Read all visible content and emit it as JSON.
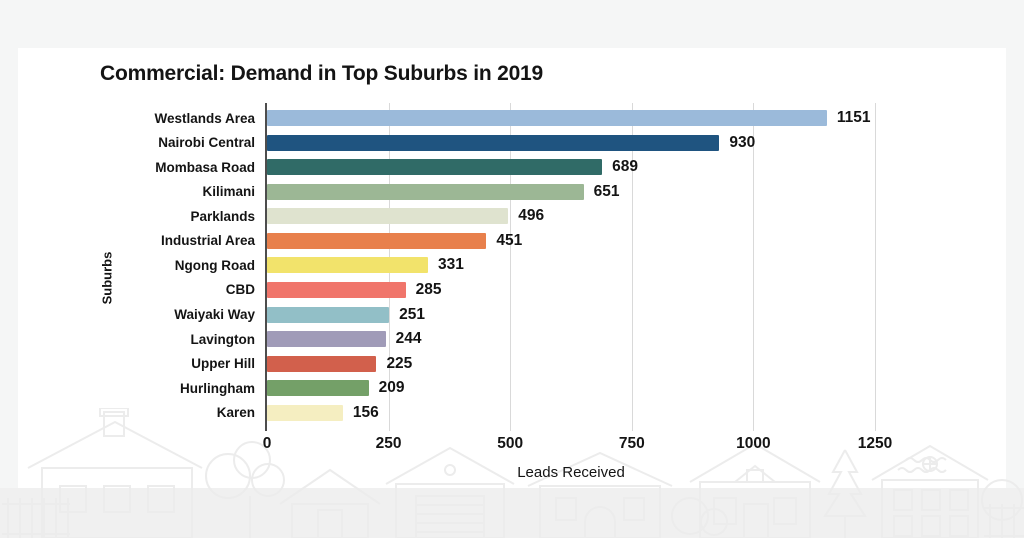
{
  "title": "Commercial: Demand in Top Suburbs in 2019",
  "chart_data": {
    "type": "bar",
    "orientation": "horizontal",
    "title": "Commercial: Demand in Top Suburbs in 2019",
    "xlabel": "Leads Received",
    "ylabel": "Suburbs",
    "xlim": [
      0,
      1250
    ],
    "x_ticks": [
      0,
      250,
      500,
      750,
      1000,
      1250
    ],
    "grid": true,
    "legend": false,
    "value_labels": true,
    "categories": [
      "Westlands Area",
      "Nairobi Central",
      "Mombasa Road",
      "Kilimani",
      "Parklands",
      "Industrial Area",
      "Ngong Road",
      "CBD",
      "Waiyaki Way",
      "Lavington",
      "Upper Hill",
      "Hurlingham",
      "Karen"
    ],
    "values": [
      1151,
      930,
      689,
      651,
      496,
      451,
      331,
      285,
      251,
      244,
      225,
      209,
      156
    ],
    "bar_colors": [
      "#9bbada",
      "#1f5480",
      "#306b67",
      "#9cb795",
      "#dfe3cf",
      "#e8804c",
      "#f2e36b",
      "#f0756b",
      "#92bfc7",
      "#a09bb8",
      "#d2604c",
      "#74a068",
      "#f5eec1"
    ]
  },
  "colors": {
    "frame_background": "#f5f6f6",
    "card_background": "#ffffff",
    "bottom_band": "#f0f0f0",
    "axis_line": "#4d4d4d",
    "gridline": "#d9d9d9",
    "text": "#141414",
    "decoration_stroke": "#ececec"
  },
  "decor": {
    "description": "houses-skyline-outline"
  }
}
